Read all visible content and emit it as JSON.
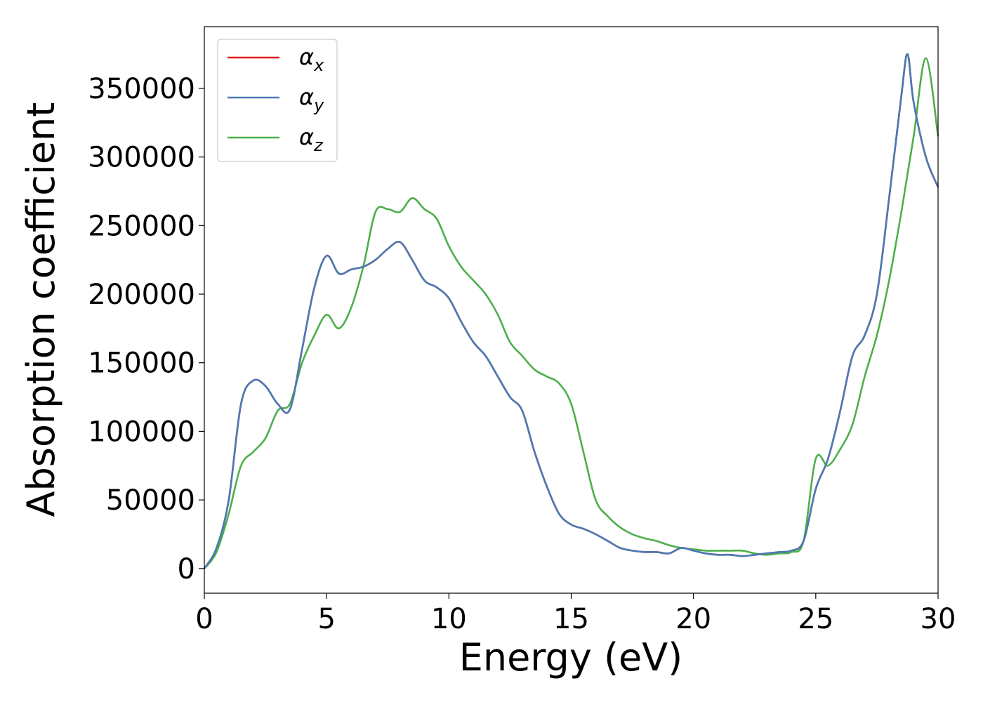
{
  "chart_data": {
    "type": "line",
    "title": "",
    "xlabel": "Energy (eV)",
    "ylabel": "Absorption coefficient",
    "xlim": [
      0,
      30
    ],
    "ylim": [
      -18000,
      395000
    ],
    "xticks": [
      0,
      5,
      10,
      15,
      20,
      25,
      30
    ],
    "yticks": [
      0,
      50000,
      100000,
      150000,
      200000,
      250000,
      300000,
      350000
    ],
    "grid": false,
    "legend": "top-left",
    "series": [
      {
        "name": "αx",
        "label_base": "α",
        "label_sub": "x",
        "color": "#e41a1c",
        "x": [
          0,
          0.5,
          1.0,
          1.5,
          2.0,
          2.5,
          3.0,
          3.5,
          4.0,
          4.5,
          5.0,
          5.5,
          6.0,
          6.5,
          7.0,
          7.5,
          8.0,
          8.5,
          9.0,
          9.5,
          10.0,
          10.5,
          11.0,
          11.5,
          12.0,
          12.5,
          13.0,
          13.5,
          14.0,
          14.5,
          15.0,
          15.5,
          16.0,
          16.5,
          17.0,
          17.5,
          18.0,
          18.5,
          19.0,
          19.5,
          20.0,
          20.5,
          21.0,
          21.5,
          22.0,
          22.5,
          23.0,
          23.5,
          24.0,
          24.5,
          25.0,
          25.5,
          26.0,
          26.5,
          27.0,
          27.5,
          28.0,
          28.5,
          28.75,
          29.0,
          29.5,
          30.0
        ],
        "values": [
          0,
          15000,
          50000,
          120000,
          137000,
          133000,
          120000,
          116000,
          160000,
          205000,
          228000,
          215000,
          218000,
          220000,
          225000,
          233000,
          238000,
          225000,
          210000,
          205000,
          197000,
          180000,
          165000,
          155000,
          140000,
          125000,
          115000,
          85000,
          60000,
          40000,
          32000,
          29000,
          25000,
          20000,
          15000,
          13000,
          12000,
          12000,
          11000,
          15000,
          13000,
          11000,
          10000,
          10000,
          9000,
          10000,
          11000,
          12000,
          13000,
          20000,
          58000,
          80000,
          115000,
          155000,
          170000,
          200000,
          270000,
          345000,
          375000,
          340000,
          300000,
          278000
        ]
      },
      {
        "name": "αy",
        "label_base": "α",
        "label_sub": "y",
        "color": "#4a7ab5",
        "x": [
          0,
          0.5,
          1.0,
          1.5,
          2.0,
          2.5,
          3.0,
          3.5,
          4.0,
          4.5,
          5.0,
          5.5,
          6.0,
          6.5,
          7.0,
          7.5,
          8.0,
          8.5,
          9.0,
          9.5,
          10.0,
          10.5,
          11.0,
          11.5,
          12.0,
          12.5,
          13.0,
          13.5,
          14.0,
          14.5,
          15.0,
          15.5,
          16.0,
          16.5,
          17.0,
          17.5,
          18.0,
          18.5,
          19.0,
          19.5,
          20.0,
          20.5,
          21.0,
          21.5,
          22.0,
          22.5,
          23.0,
          23.5,
          24.0,
          24.5,
          25.0,
          25.5,
          26.0,
          26.5,
          27.0,
          27.5,
          28.0,
          28.5,
          28.75,
          29.0,
          29.5,
          30.0
        ],
        "values": [
          0,
          15000,
          50000,
          120000,
          137000,
          133000,
          120000,
          116000,
          160000,
          205000,
          228000,
          215000,
          218000,
          220000,
          225000,
          233000,
          238000,
          225000,
          210000,
          205000,
          197000,
          180000,
          165000,
          155000,
          140000,
          125000,
          115000,
          85000,
          60000,
          40000,
          32000,
          29000,
          25000,
          20000,
          15000,
          13000,
          12000,
          12000,
          11000,
          15000,
          13000,
          11000,
          10000,
          10000,
          9000,
          10000,
          11000,
          12000,
          13000,
          20000,
          58000,
          80000,
          115000,
          155000,
          170000,
          200000,
          270000,
          345000,
          375000,
          340000,
          300000,
          278000
        ]
      },
      {
        "name": "αz",
        "label_base": "α",
        "label_sub": "z",
        "color": "#4daf4a",
        "x": [
          0,
          0.5,
          1.0,
          1.5,
          2.0,
          2.5,
          3.0,
          3.5,
          4.0,
          4.5,
          5.0,
          5.5,
          6.0,
          6.5,
          7.0,
          7.5,
          8.0,
          8.5,
          9.0,
          9.5,
          10.0,
          10.5,
          11.0,
          11.5,
          12.0,
          12.5,
          13.0,
          13.5,
          14.0,
          14.5,
          15.0,
          15.5,
          16.0,
          16.5,
          17.0,
          17.5,
          18.0,
          18.5,
          19.0,
          19.5,
          20.0,
          20.5,
          21.0,
          21.5,
          22.0,
          22.5,
          23.0,
          23.5,
          24.0,
          24.5,
          25.0,
          25.5,
          26.0,
          26.5,
          27.0,
          27.5,
          28.0,
          28.5,
          29.0,
          29.5,
          30.0
        ],
        "values": [
          0,
          12000,
          40000,
          75000,
          85000,
          95000,
          115000,
          120000,
          150000,
          170000,
          185000,
          175000,
          190000,
          220000,
          260000,
          262000,
          260000,
          270000,
          262000,
          255000,
          235000,
          220000,
          210000,
          200000,
          185000,
          165000,
          155000,
          145000,
          140000,
          135000,
          120000,
          85000,
          50000,
          38000,
          30000,
          25000,
          22000,
          20000,
          17000,
          15000,
          14000,
          13000,
          13000,
          13000,
          13000,
          11000,
          10000,
          11000,
          12000,
          20000,
          80000,
          75000,
          87000,
          105000,
          140000,
          170000,
          210000,
          260000,
          315000,
          372000,
          315000
        ]
      }
    ]
  }
}
